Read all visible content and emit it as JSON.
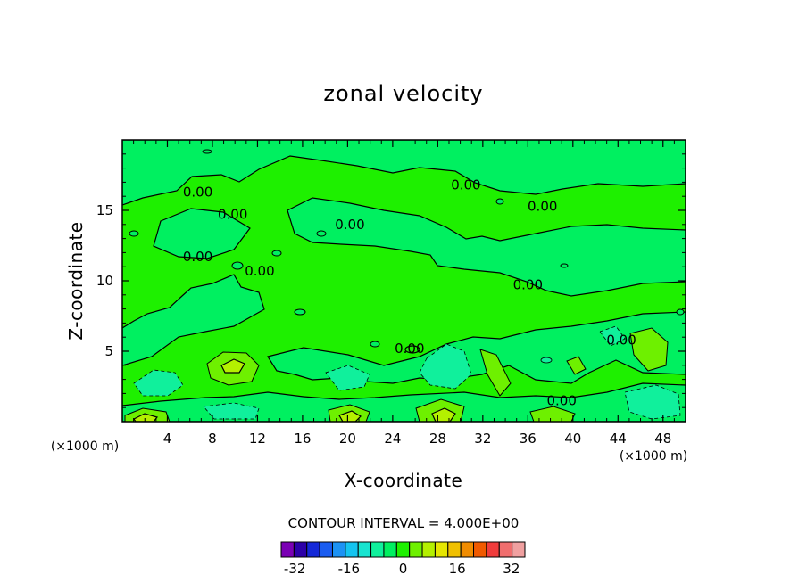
{
  "chart_data": {
    "type": "contour",
    "title": "zonal velocity",
    "xlabel": "X-coordinate",
    "ylabel": "Z-coordinate",
    "x_unit": "(×1000 m)",
    "y_unit": "(×1000 m)",
    "xlim": [
      0,
      50
    ],
    "ylim": [
      0,
      20
    ],
    "xticks": [
      4,
      8,
      12,
      16,
      20,
      24,
      28,
      32,
      36,
      40,
      44,
      48
    ],
    "yticks": [
      5,
      10,
      15
    ],
    "contour_interval_text": "CONTOUR INTERVAL = 4.000E+00",
    "contour_labels": [
      {
        "text": "0.00",
        "x": 6.7,
        "z": 16.3
      },
      {
        "text": "0.00",
        "x": 9.8,
        "z": 14.7
      },
      {
        "text": "0.00",
        "x": 20.2,
        "z": 14.0
      },
      {
        "text": "0.00",
        "x": 30.5,
        "z": 16.8
      },
      {
        "text": "0.00",
        "x": 37.3,
        "z": 15.3
      },
      {
        "text": "0.00",
        "x": 6.7,
        "z": 11.7
      },
      {
        "text": "0.00",
        "x": 12.2,
        "z": 10.7
      },
      {
        "text": "0.00",
        "x": 36.0,
        "z": 9.7
      },
      {
        "text": "0.00",
        "x": 25.5,
        "z": 5.2
      },
      {
        "text": "0.00",
        "x": 44.3,
        "z": 5.8
      },
      {
        "text": "0.00",
        "x": 39.0,
        "z": 1.5
      }
    ],
    "colorbar": {
      "levels": [
        -36,
        -32,
        -28,
        -24,
        -20,
        -16,
        -12,
        -8,
        -4,
        0,
        4,
        8,
        12,
        16,
        20,
        24,
        28,
        32,
        36
      ],
      "tick_labels": [
        "-32",
        "-16",
        "0",
        "16",
        "32"
      ],
      "colors": [
        "#7a00b4",
        "#2c00a8",
        "#1428d8",
        "#1a5cf0",
        "#1c92f4",
        "#14c4f0",
        "#18e4d0",
        "#10f09c",
        "#00f060",
        "#1ef000",
        "#6ef000",
        "#b4f000",
        "#e6e600",
        "#f0c000",
        "#f08c00",
        "#f05a00",
        "#f03c3c",
        "#f06e6e",
        "#f0a0a0"
      ]
    }
  }
}
